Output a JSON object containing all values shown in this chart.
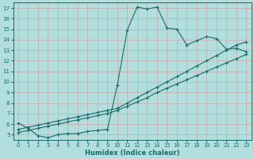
{
  "xlabel": "Humidex (Indice chaleur)",
  "background_color": "#b2dede",
  "grid_color": "#c8aaaa",
  "line_color": "#1a6b6b",
  "xlim": [
    -0.5,
    23.5
  ],
  "ylim": [
    4.5,
    17.5
  ],
  "xticks": [
    0,
    1,
    2,
    3,
    4,
    5,
    6,
    7,
    8,
    9,
    10,
    11,
    12,
    13,
    14,
    15,
    16,
    17,
    18,
    19,
    20,
    21,
    22,
    23
  ],
  "yticks": [
    5,
    6,
    7,
    8,
    9,
    10,
    11,
    12,
    13,
    14,
    15,
    16,
    17
  ],
  "line1_x": [
    0,
    1,
    2,
    3,
    4,
    5,
    6,
    7,
    8,
    9,
    10,
    11,
    12,
    13,
    14,
    15,
    16,
    17,
    18,
    19,
    20,
    21,
    22,
    23
  ],
  "line1_y": [
    6.1,
    5.6,
    4.9,
    4.7,
    5.0,
    5.1,
    5.1,
    5.3,
    5.4,
    5.5,
    9.7,
    14.9,
    17.1,
    16.9,
    17.1,
    15.1,
    15.0,
    13.5,
    13.9,
    14.3,
    14.1,
    13.1,
    13.2,
    12.85
  ],
  "line2_x": [
    0,
    1,
    2,
    3,
    4,
    5,
    6,
    7,
    8,
    9,
    10,
    11,
    12,
    13,
    14,
    15,
    16,
    17,
    18,
    19,
    20,
    21,
    22,
    23
  ],
  "line2_y": [
    5.5,
    5.7,
    5.9,
    6.1,
    6.3,
    6.5,
    6.7,
    6.9,
    7.1,
    7.3,
    7.5,
    8.0,
    8.5,
    9.0,
    9.5,
    10.0,
    10.5,
    11.0,
    11.5,
    12.0,
    12.5,
    13.0,
    13.5,
    13.8
  ],
  "line3_x": [
    0,
    1,
    2,
    3,
    4,
    5,
    6,
    7,
    8,
    9,
    10,
    11,
    12,
    13,
    14,
    15,
    16,
    17,
    18,
    19,
    20,
    21,
    22,
    23
  ],
  "line3_y": [
    5.2,
    5.4,
    5.6,
    5.8,
    6.0,
    6.2,
    6.4,
    6.6,
    6.8,
    7.0,
    7.3,
    7.7,
    8.1,
    8.5,
    9.0,
    9.4,
    9.8,
    10.2,
    10.6,
    11.0,
    11.4,
    11.8,
    12.2,
    12.6
  ],
  "markersize": 2.5,
  "linewidth": 0.8
}
